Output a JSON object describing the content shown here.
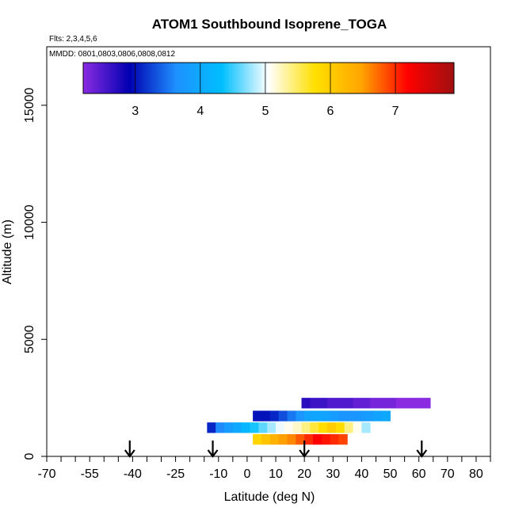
{
  "chart_data": {
    "type": "heatmap",
    "title": "ATOM1 Southbound Isoprene_TOGA",
    "subtitle_flights": "Flts: 2,3,4,5,6",
    "subtitle_dates": "MMDD: 0801,0803,0806,0808,0812",
    "xlabel": "Latitude (deg N)",
    "ylabel": "Altitude (m)",
    "xlim": [
      -70,
      85
    ],
    "ylim": [
      0,
      17500
    ],
    "xticks_labeled": [
      "-70",
      "-55",
      "-40",
      "-25",
      "-10",
      "0",
      "10",
      "20",
      "30",
      "40",
      "50",
      "60",
      "70",
      "80"
    ],
    "x_minor_ticks": [
      -65,
      -60,
      -50,
      -45,
      -35,
      -30,
      -20,
      -15,
      -5,
      5,
      15,
      25,
      35,
      45,
      55,
      65,
      75,
      85
    ],
    "yticks": [
      "0",
      "5000",
      "10000",
      "15000"
    ],
    "colorbar": {
      "min": 2.2,
      "max": 7.9,
      "ticks": [
        "3",
        "4",
        "5",
        "6",
        "7"
      ],
      "gradient": [
        "#8a2be2",
        "#0000b0",
        "#1e90ff",
        "#00bfff",
        "#ffffff",
        "#ffe000",
        "#ffa500",
        "#ff0000",
        "#a01010"
      ]
    },
    "arrows_latitude": [
      -41,
      -12,
      20,
      61
    ],
    "rows": [
      {
        "alt_bottom": 2050,
        "alt_top": 2500,
        "x_start": 19,
        "x_step": 3,
        "values": [
          2.7,
          2.6,
          2.6,
          2.5,
          2.5,
          2.5,
          2.4,
          2.4,
          2.3,
          2.3,
          2.3,
          2.2,
          2.2,
          2.2,
          2.2
        ]
      },
      {
        "alt_bottom": 1500,
        "alt_top": 1950,
        "x_start": 2,
        "x_step": 3,
        "values": [
          3.0,
          3.0,
          3.1,
          3.3,
          3.5,
          3.7,
          3.9,
          3.95,
          3.9,
          3.8,
          3.7,
          3.7,
          3.75,
          3.8,
          3.9,
          4.0
        ]
      },
      {
        "alt_bottom": 1000,
        "alt_top": 1450,
        "x_start": -14,
        "x_step": 3,
        "values": [
          3.1,
          3.6,
          3.8,
          4.0,
          4.2,
          4.4,
          4.6,
          4.8,
          5.0,
          5.1,
          5.2,
          5.4,
          5.6,
          5.8,
          6.0,
          5.8,
          5.4,
          5.1,
          4.8
        ]
      },
      {
        "alt_bottom": 500,
        "alt_top": 950,
        "x_start": 2,
        "x_step": 3,
        "values": [
          5.9,
          6.1,
          6.3,
          6.5,
          6.6,
          6.8,
          7.0,
          7.2,
          7.1,
          7.0,
          6.9
        ]
      }
    ],
    "grid": false,
    "legend": "colorbar-top"
  }
}
